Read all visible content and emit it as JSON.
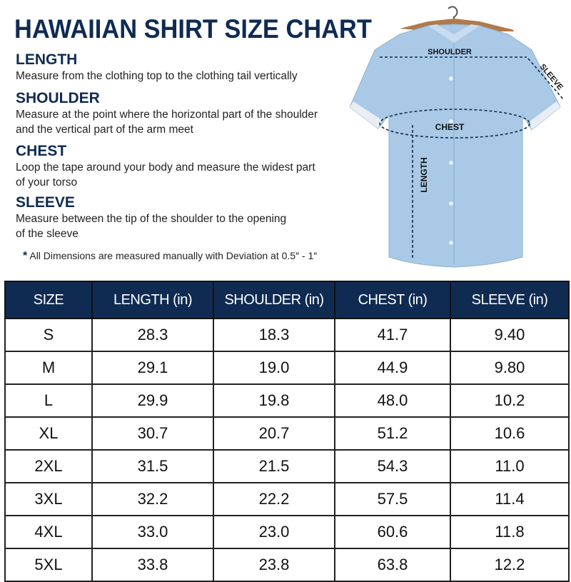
{
  "title": "HAWAIIAN SHIRT SIZE CHART",
  "sections": [
    {
      "heading": "LENGTH",
      "lines": [
        "Measure from the clothing top to the clothing tail vertically"
      ]
    },
    {
      "heading": "SHOULDER",
      "lines": [
        "Measure at the point where the horizontal part of the shoulder",
        "and the vertical part of the arm meet"
      ]
    },
    {
      "heading": "CHEST",
      "lines": [
        "Loop the tape around your body and measure the widest part",
        "of your torso"
      ]
    },
    {
      "heading": "SLEEVE",
      "lines": [
        "Measure between the tip of the shoulder to the opening",
        "of the sleeve"
      ]
    }
  ],
  "note": {
    "star": "*",
    "text": "All Dimensions are measured manually with Deviation at 0.5″ - 1″"
  },
  "diagram": {
    "shoulder": "SHOULDER",
    "sleeve": "SLEEVE",
    "chest": "CHEST",
    "length": "LENGTH"
  },
  "colors": {
    "navy": "#0f2b52",
    "shirt": "#a9c9e6"
  },
  "table": {
    "headers": [
      "SIZE",
      "LENGTH (in)",
      "SHOULDER (in)",
      "CHEST (in)",
      "SLEEVE (in)"
    ],
    "rows": [
      [
        "S",
        "28.3",
        "18.3",
        "41.7",
        "9.40"
      ],
      [
        "M",
        "29.1",
        "19.0",
        "44.9",
        "9.80"
      ],
      [
        "L",
        "29.9",
        "19.8",
        "48.0",
        "10.2"
      ],
      [
        "XL",
        "30.7",
        "20.7",
        "51.2",
        "10.6"
      ],
      [
        "2XL",
        "31.5",
        "21.5",
        "54.3",
        "11.0"
      ],
      [
        "3XL",
        "32.2",
        "22.2",
        "57.5",
        "11.4"
      ],
      [
        "4XL",
        "33.0",
        "23.0",
        "60.6",
        "11.8"
      ],
      [
        "5XL",
        "33.8",
        "23.8",
        "63.8",
        "12.2"
      ]
    ]
  }
}
